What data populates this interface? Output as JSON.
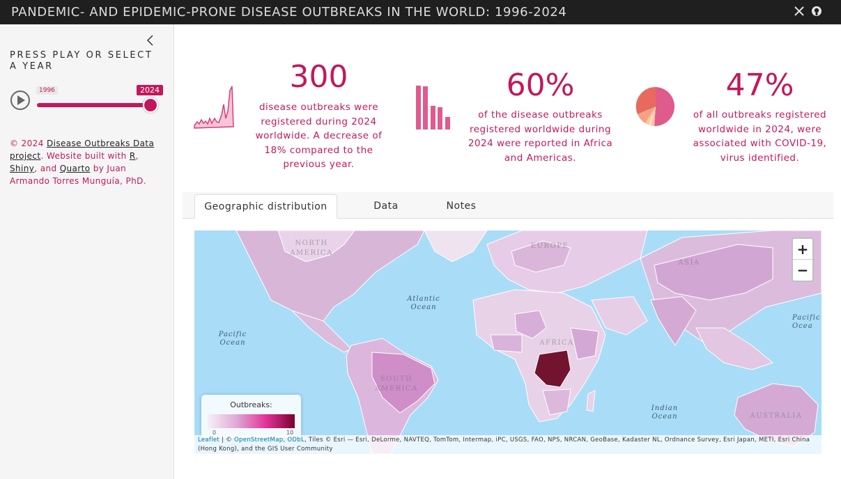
{
  "header": {
    "title": "PANDEMIC- AND EPIDEMIC-PRONE DISEASE OUTBREAKS IN THE WORLD: 1996-2024",
    "icons": [
      "x-twitter-icon",
      "github-icon"
    ]
  },
  "sidebar": {
    "title": "PRESS PLAY OR SELECT A YEAR",
    "slider": {
      "min_label": "1996",
      "max_label": "2024",
      "value": 2024,
      "min": 1996,
      "max": 2024
    },
    "credit": {
      "prefix": "© 2024 ",
      "project_link": "Disease Outbreaks Data project",
      "mid": ". Website built with ",
      "r_link": "R",
      "comma": ", ",
      "shiny_link": "Shiny",
      "and": ", and ",
      "quarto_link": "Quarto",
      "suffix": " by Juan Armando Torres Munguía, PhD."
    }
  },
  "stats": [
    {
      "value": "300",
      "description": "disease outbreaks were registered during 2024 worldwide. A decrease of 18% compared to the previous year."
    },
    {
      "value": "60%",
      "description": "of the disease outbreaks registered worldwide during 2024 were reported in Africa and Americas."
    },
    {
      "value": "47%",
      "description": "of all outbreaks registered worldwide in 2024, were associated with COVID-19, virus identified."
    }
  ],
  "tabs": [
    {
      "label": "Geographic distribution",
      "active": true
    },
    {
      "label": "Data",
      "active": false
    },
    {
      "label": "Notes",
      "active": false
    }
  ],
  "map": {
    "oceans": {
      "atlantic": "Atlantic Ocean",
      "pacific_left": "Pacific Ocean",
      "pacific_right": "Pacific Ocea",
      "indian": "Indian Ocean"
    },
    "regions": {
      "north_america": "NORTH AMERICA",
      "europe": "EUROPE",
      "asia": "ASIA",
      "south_america": "SOUTH AMERICA",
      "africa": "AFRICA",
      "australia": "AUSTRALIA"
    },
    "zoom_in": "+",
    "zoom_out": "−",
    "legend": {
      "title": "Outbreaks:",
      "min": 0,
      "max": 10
    },
    "attribution": {
      "leaflet": "Leaflet",
      "sep1": " | © ",
      "osm": "OpenStreetMap",
      "sep2": ", ",
      "odbl": "ODbL",
      "rest": ", Tiles © Esri — Esri, DeLorme, NAVTEQ, TomTom, Intermap, iPC, USGS, FAO, NPS, NRCAN, GeoBase, Kadaster NL, Ordnance Survey, Esri Japan, METI, Esri China (Hong Kong), and the GIS User Community"
    },
    "colors": {
      "low": "#f7f0f7",
      "mid": "#dfa9d5",
      "high": "#e2339a",
      "max": "#7a0030"
    }
  },
  "colors": {
    "accent": "#c2185b",
    "topbar": "#1f1f1f"
  }
}
